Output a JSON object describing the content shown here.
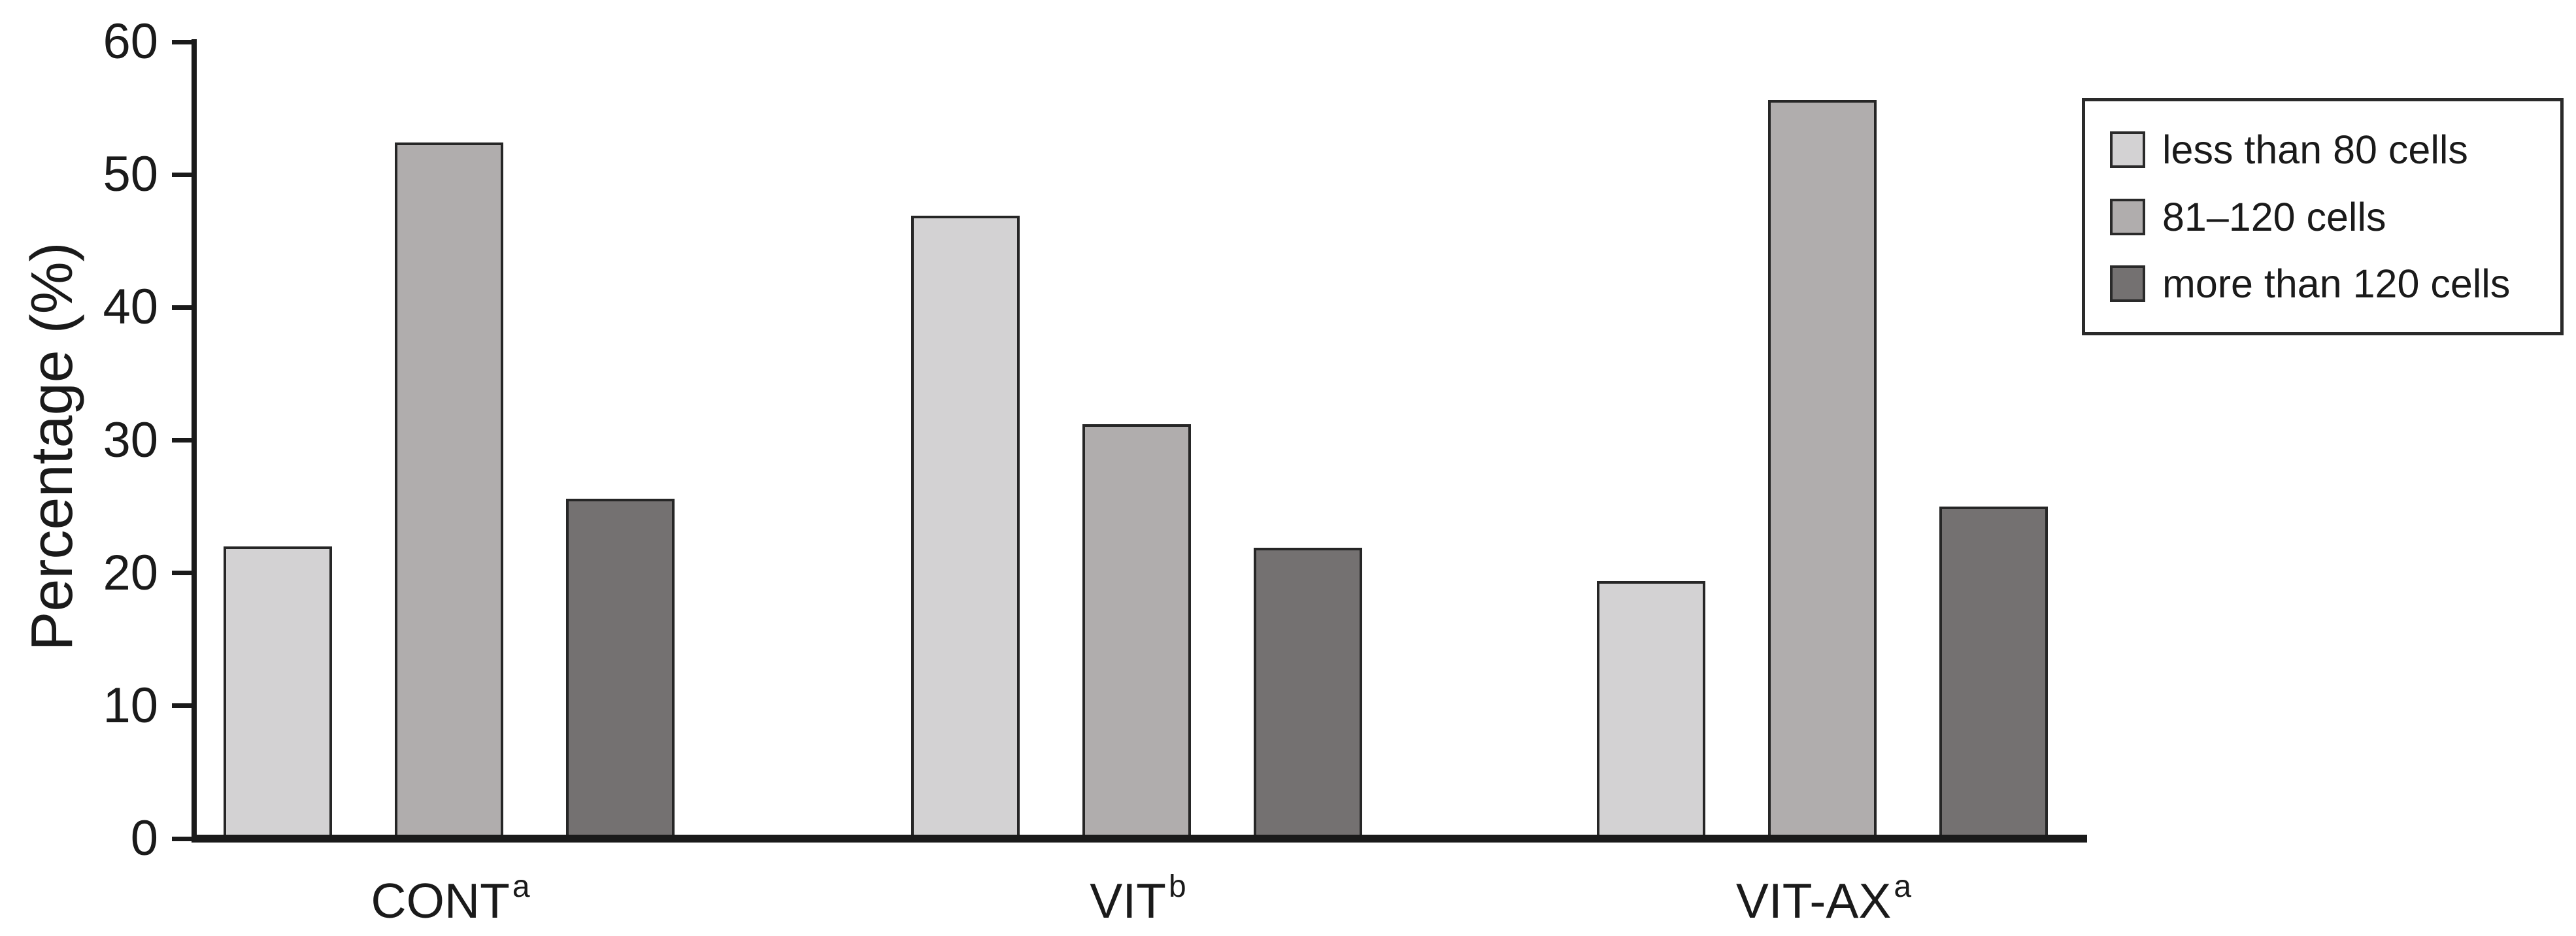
{
  "chart_data": {
    "type": "bar",
    "title": "",
    "xlabel": "",
    "ylabel": "Percentage (%)",
    "ylim": [
      0,
      60
    ],
    "yticks": [
      0,
      10,
      20,
      30,
      40,
      50,
      60
    ],
    "grid": false,
    "legend_position": "top-right",
    "categories": [
      {
        "label": "CONT",
        "superscript": "a"
      },
      {
        "label": "VIT",
        "superscript": "b"
      },
      {
        "label": "VIT-AX",
        "superscript": "a"
      }
    ],
    "series": [
      {
        "name": "less than 80 cells",
        "color": "#d3d2d3",
        "values": [
          22.0,
          46.9,
          19.4
        ]
      },
      {
        "name": "81–120 cells",
        "color": "#b0adad",
        "values": [
          52.4,
          31.2,
          55.6
        ]
      },
      {
        "name": "more than 120 cells",
        "color": "#747171",
        "values": [
          25.6,
          21.9,
          25.0
        ]
      }
    ]
  },
  "colors": {
    "axis": "#1a1a1a",
    "bar_border": "#262626",
    "background": "#ffffff"
  }
}
